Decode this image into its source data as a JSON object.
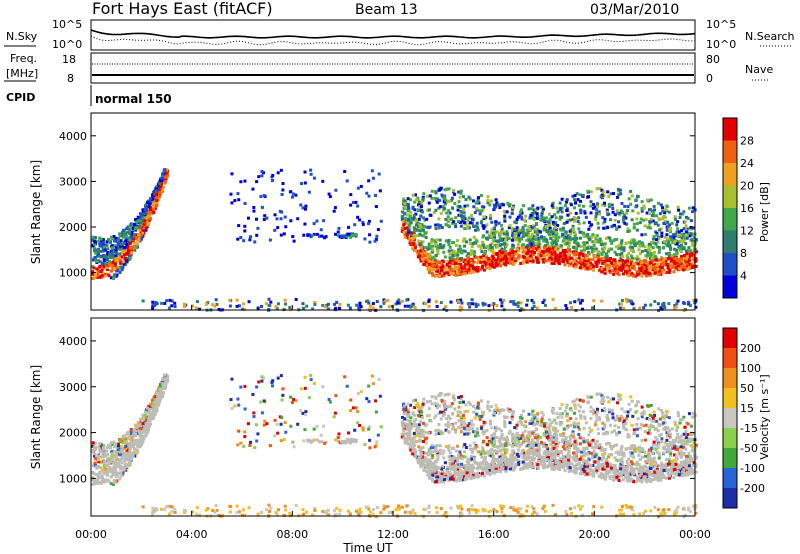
{
  "header": {
    "title": "Fort Hays East (fitACF)",
    "beam": "Beam 13",
    "date": "03/Mar/2010"
  },
  "noise_panel": {
    "left_label": "N.Sky",
    "right_label": "N.Search",
    "left_ticks": [
      "10^5",
      "10^0"
    ],
    "right_ticks": [
      "10^5",
      "10^0"
    ]
  },
  "freq_panel": {
    "left_label_1": "Freq.",
    "left_label_2": "[MHz]",
    "right_label": "Nave",
    "left_ticks": [
      "18",
      "8"
    ],
    "right_ticks": [
      "80",
      "0"
    ]
  },
  "cpid": {
    "label": "CPID",
    "mode": "normal 150"
  },
  "chart_data": [
    {
      "type": "heatmap",
      "name": "power",
      "ylabel": "Slant Range [km]",
      "xlabel": "Time UT",
      "xlim": [
        0,
        24
      ],
      "ylim": [
        180,
        4500
      ],
      "xticks": [
        "00:00",
        "04:00",
        "08:00",
        "12:00",
        "16:00",
        "20:00",
        "00:00"
      ],
      "yticks": [
        "1000",
        "2000",
        "3000",
        "4000"
      ],
      "colorbar": {
        "label": "Power [dB]",
        "ticks": [
          "4",
          "8",
          "12",
          "16",
          "20",
          "24",
          "28"
        ],
        "colors": [
          "#0000dd",
          "#1f4fc8",
          "#2e7d6e",
          "#3ea84b",
          "#a8c030",
          "#f0a020",
          "#f06010",
          "#e00000"
        ]
      },
      "regions": [
        {
          "desc": "early-arc",
          "t": [
            0.0,
            2.8
          ],
          "r": [
            1000,
            3300
          ],
          "level": "mixed"
        },
        {
          "desc": "evening-band",
          "t": [
            12.5,
            24.0
          ],
          "r": [
            1000,
            1500
          ],
          "level": "high"
        },
        {
          "desc": "upper-band",
          "t": [
            12.5,
            24.0
          ],
          "r": [
            1700,
            2700
          ],
          "level": "mid"
        }
      ]
    },
    {
      "type": "heatmap",
      "name": "velocity",
      "ylabel": "Slant Range [km]",
      "xlabel": "Time UT",
      "xlim": [
        0,
        24
      ],
      "ylim": [
        180,
        4500
      ],
      "xticks": [
        "00:00",
        "04:00",
        "08:00",
        "12:00",
        "16:00",
        "20:00",
        "00:00"
      ],
      "yticks": [
        "1000",
        "2000",
        "3000",
        "4000"
      ],
      "colorbar": {
        "label": "Velocity [m s⁻¹]",
        "ticks": [
          "200",
          "100",
          "50",
          "15",
          "-15",
          "-50",
          "-100",
          "-200"
        ],
        "colors": [
          "#1a2ea8",
          "#2a62d8",
          "#3fa83a",
          "#8ad04a",
          "#c8c8c0",
          "#f0c020",
          "#f09020",
          "#f05010",
          "#e00000"
        ]
      }
    }
  ],
  "colors": {
    "ground_scatter": "#bdbdb6",
    "axis": "#000000"
  }
}
